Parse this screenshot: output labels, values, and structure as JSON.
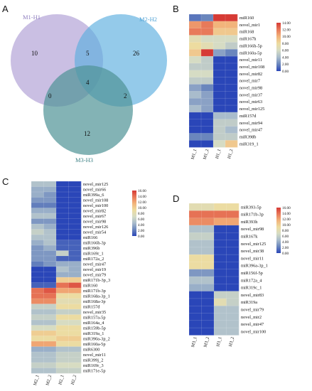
{
  "panels": {
    "A": {
      "letter": "A",
      "sets": [
        {
          "label": "M1-H1",
          "color": "#b8a9d9"
        },
        {
          "label": "M2-H2",
          "color": "#5aaede"
        },
        {
          "label": "M3-H3",
          "color": "#4e9396"
        }
      ],
      "regions": {
        "m1_only": "10",
        "m2_only": "26",
        "m3_only": "12",
        "m1_m2": "5",
        "m1_m3": "0",
        "m2_m3": "2",
        "all": "4"
      }
    },
    "B": {
      "letter": "B",
      "columns": [
        "M1_1",
        "M1_2",
        "H1_1",
        "H1_2"
      ],
      "rows": [
        "miR160",
        "novel_mir1",
        "miR168",
        "miR167h",
        "miR166h-5p",
        "miR160a-5p",
        "novel_mir11",
        "novel_mir108",
        "novel_mir82",
        "novel_mir7",
        "novel_mir98",
        "novel_mir37",
        "novel_mir63",
        "novel_mir125",
        "miR157d",
        "novel_mir94",
        "novel_mir47",
        "miR398b",
        "miR319_1"
      ],
      "values": [
        [
          1.5,
          2,
          14,
          14
        ],
        [
          11,
          12,
          10,
          10
        ],
        [
          12,
          12,
          9,
          9
        ],
        [
          7,
          6,
          6,
          6
        ],
        [
          8,
          7,
          6,
          5
        ],
        [
          9,
          14,
          3,
          2
        ],
        [
          6,
          5,
          0,
          0
        ],
        [
          5,
          5,
          0,
          0
        ],
        [
          6,
          6,
          0,
          0
        ],
        [
          5,
          5,
          0,
          0
        ],
        [
          3,
          2,
          0,
          0
        ],
        [
          4,
          3,
          0,
          0
        ],
        [
          3,
          3,
          0,
          0
        ],
        [
          4,
          3,
          0,
          0
        ],
        [
          0,
          0,
          4,
          4
        ],
        [
          0,
          0,
          5,
          5
        ],
        [
          0,
          0,
          5,
          4
        ],
        [
          2,
          2,
          5,
          5
        ],
        [
          0,
          0,
          6,
          9
        ]
      ],
      "legend_ticks": [
        "14.00",
        "12.00",
        "10.00",
        "8.00",
        "6.00",
        "4.00",
        "2.00",
        "0.00"
      ],
      "scale_max": 14
    },
    "C": {
      "letter": "C",
      "columns": [
        "M2_1",
        "M2_2",
        "H2_1",
        "H2_2"
      ],
      "rows": [
        "novel_mir125",
        "novel_mir66",
        "miR399a_6",
        "novel_mir108",
        "novel_mir100",
        "novel_mir82",
        "novel_mir67",
        "novel_mir98",
        "novel_mir126",
        "novel_mir54",
        "miR166",
        "miR166h-3p",
        "miR396b",
        "miR169r_1",
        "miR172a_2",
        "novel_mir47",
        "novel_mir19",
        "novel_mir79",
        "miR171b-3p_3",
        "miR160",
        "miR171b-3p",
        "miR168a-3p_1",
        "miR168a-3p",
        "miR157d",
        "novel_mir35",
        "miR157a-5p",
        "miR164a_4",
        "miR159b-5p",
        "miR319a_1",
        "miR390a-3p_2",
        "miR160a-5p",
        "miR6300",
        "novel_mir11",
        "miR399j_2",
        "miR169r_3",
        "miR171e-5p"
      ],
      "values": [
        [
          5,
          5,
          0,
          0
        ],
        [
          4,
          4,
          0,
          0
        ],
        [
          4,
          3,
          0,
          0
        ],
        [
          3,
          3,
          0,
          0
        ],
        [
          2,
          2,
          0,
          0
        ],
        [
          4,
          4,
          0,
          0
        ],
        [
          5,
          5,
          0,
          0
        ],
        [
          3,
          3,
          0,
          0
        ],
        [
          5,
          4,
          0,
          0
        ],
        [
          6,
          5,
          0,
          0
        ],
        [
          5,
          5,
          0,
          0
        ],
        [
          4,
          5,
          1,
          1
        ],
        [
          3,
          4,
          1,
          1
        ],
        [
          3,
          3,
          6,
          1
        ],
        [
          3,
          3,
          1,
          1
        ],
        [
          2,
          3,
          4,
          4
        ],
        [
          0,
          0,
          5,
          4
        ],
        [
          0,
          0,
          4,
          4
        ],
        [
          0,
          0,
          10,
          10
        ],
        [
          1,
          1,
          14,
          15
        ],
        [
          14,
          15,
          12,
          12
        ],
        [
          14,
          14,
          9,
          9
        ],
        [
          13,
          13,
          8,
          8
        ],
        [
          6,
          6,
          9,
          9
        ],
        [
          5,
          5,
          6,
          6
        ],
        [
          6,
          6,
          9,
          9
        ],
        [
          5,
          5,
          7,
          7
        ],
        [
          7,
          7,
          9,
          9
        ],
        [
          10,
          10,
          9,
          9
        ],
        [
          9,
          9,
          10,
          10
        ],
        [
          12,
          12,
          9,
          9
        ],
        [
          4,
          4,
          5,
          5
        ],
        [
          5,
          5,
          6,
          6
        ],
        [
          5,
          5,
          6,
          6
        ],
        [
          6,
          6,
          7,
          7
        ],
        [
          5,
          5,
          6,
          6
        ]
      ],
      "legend_ticks": [
        "16.00",
        "14.00",
        "12.00",
        "10.00",
        "8.00",
        "6.00",
        "4.00",
        "2.00",
        "0.00"
      ],
      "scale_max": 16
    },
    "D": {
      "letter": "D",
      "columns": [
        "M3_1",
        "M3_2",
        "H3_1",
        "H3_2"
      ],
      "rows": [
        "miR393-5p",
        "miR171b-3p",
        "miR393h",
        "novel_mir98",
        "miR167k",
        "novel_mir125",
        "novel_mir38",
        "novel_mir11",
        "miR396a-3p_1",
        "miR156f-5p",
        "miR172a_4",
        "miR319c_1",
        "novel_mir83",
        "miR319a",
        "novel_mir79",
        "novel_mir2",
        "novel_mir47",
        "novel_mir100"
      ],
      "values": [
        [
          8,
          8,
          9,
          9
        ],
        [
          14,
          14,
          14,
          14
        ],
        [
          13,
          13,
          12,
          12
        ],
        [
          5,
          5,
          0,
          0
        ],
        [
          6,
          6,
          0,
          0
        ],
        [
          5,
          5,
          0,
          0
        ],
        [
          5,
          5,
          0,
          0
        ],
        [
          9,
          9,
          0,
          0
        ],
        [
          9,
          9,
          0,
          0
        ],
        [
          3,
          3,
          0,
          0
        ],
        [
          5,
          5,
          0,
          0
        ],
        [
          4,
          4,
          0,
          0
        ],
        [
          0,
          0,
          6,
          6
        ],
        [
          0,
          0,
          8,
          6
        ],
        [
          0,
          0,
          5,
          5
        ],
        [
          0,
          0,
          5,
          5
        ],
        [
          0,
          0,
          5,
          5
        ],
        [
          0,
          0,
          5,
          5
        ]
      ],
      "legend_ticks": [
        "16.00",
        "14.00",
        "12.00",
        "10.00",
        "8.00",
        "6.00",
        "4.00",
        "2.00",
        "0.00"
      ],
      "scale_max": 16
    }
  },
  "colormap": [
    "#2a46b8",
    "#6a86bd",
    "#a9bccc",
    "#d6dcc4",
    "#eddca0",
    "#f2b47b",
    "#e87a5a",
    "#d63a35"
  ]
}
